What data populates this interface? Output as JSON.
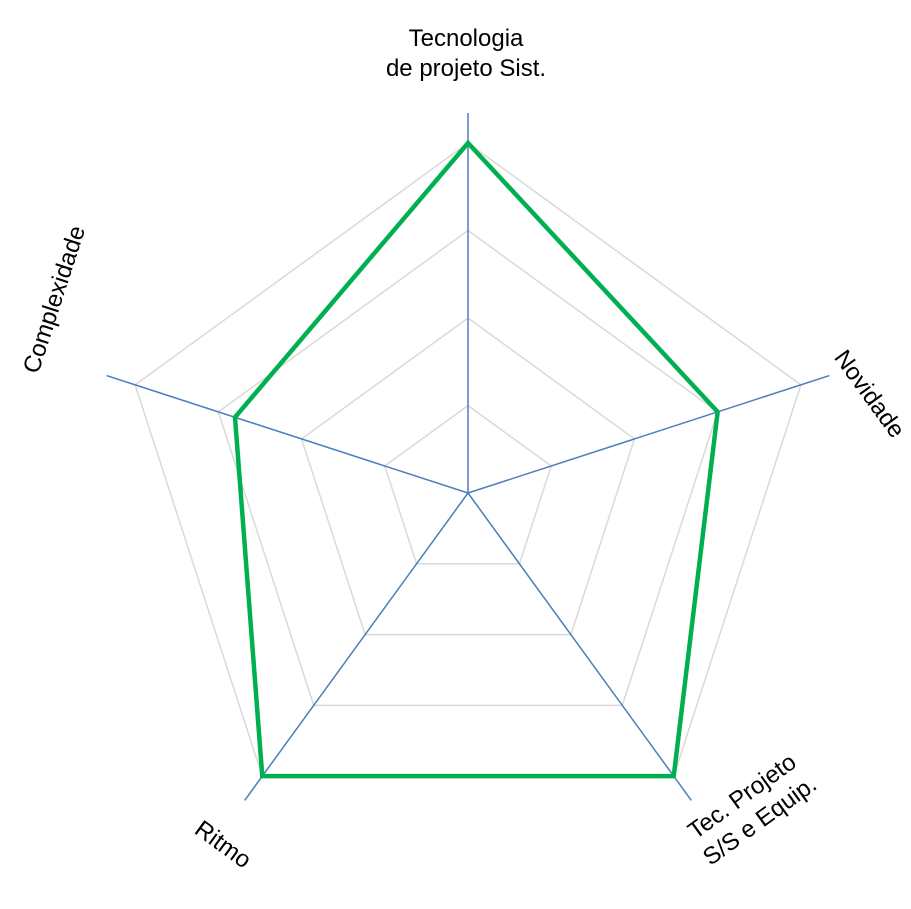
{
  "chart_data": {
    "type": "radar",
    "categories": [
      "Tecnologia\nde projeto Sist.",
      "Novidade",
      "Tec. Projeto\nS/S e Equip.",
      "Ritmo",
      "Complexidade"
    ],
    "series": [
      {
        "color": "#00b050",
        "values": [
          4,
          3,
          4,
          4,
          2.8
        ]
      }
    ],
    "ylim": [
      0,
      4
    ],
    "yticks": [
      1,
      2,
      3,
      4
    ],
    "grid": true,
    "axis_color": "#4a7ebb",
    "grid_color": "#d9d9d9"
  }
}
